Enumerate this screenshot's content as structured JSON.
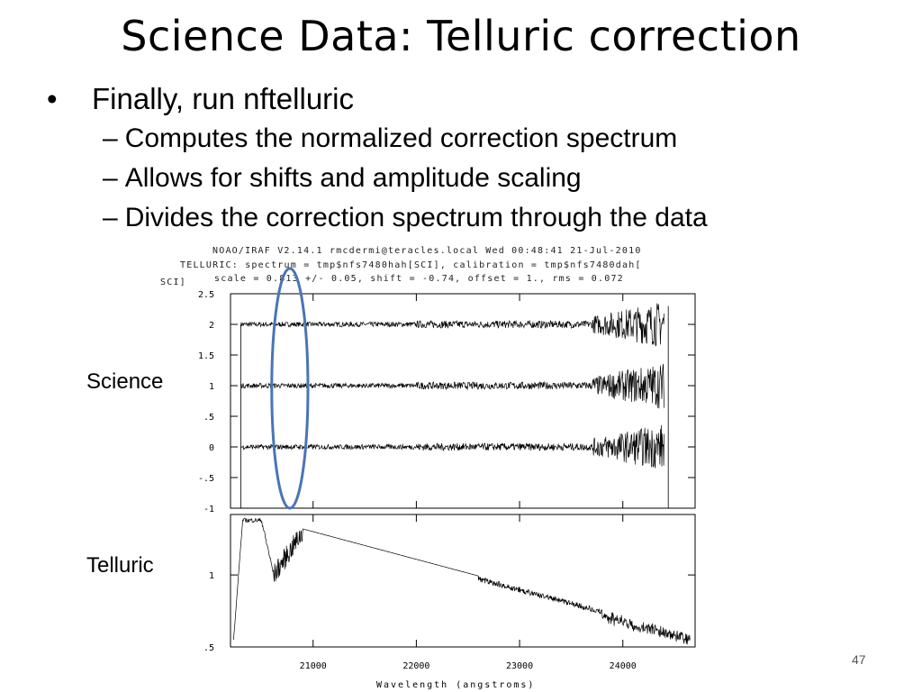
{
  "slide": {
    "title": "Science Data: Telluric correction",
    "bullet": "Finally, run nftelluric",
    "sub_bullets": [
      "Computes the normalized correction spectrum",
      "Allows for shifts and amplitude scaling",
      "Divides the correction spectrum through the data"
    ],
    "dash": "–",
    "dot": "•",
    "labels": {
      "science": "Science",
      "telluric": "Telluric"
    },
    "page_number": "47"
  },
  "chart_data": [
    {
      "type": "line",
      "header": [
        "NOAO/IRAF V2.14.1 rmcdermi@teracles.local Wed 00:48:41 21-Jul-2010",
        "TELLURIC: spectrum = tmp$nfs7480hah[SCI], calibration = tmp$nfs7480dah[",
        "scale =  0.813 +/-    0.05, shift = -0.74, offset =  1., rms = 0.072",
        "SCI]"
      ],
      "ylim": [
        -1,
        2.5
      ],
      "yticks": [
        "2.5",
        "2",
        "1.5",
        "1",
        ".5",
        "0",
        "-.5",
        "-1"
      ],
      "xlim": [
        20200,
        24700
      ],
      "series": [
        {
          "offset": 2.0
        },
        {
          "offset": 1.0
        },
        {
          "offset": 0.0
        }
      ],
      "highlight": {
        "x_range": [
          20600,
          20950
        ],
        "color": "#4a74b5"
      }
    },
    {
      "type": "line",
      "yticks": [
        "1",
        ".5"
      ],
      "ylim": [
        0.5,
        1.42
      ],
      "xlim": [
        20200,
        24700
      ],
      "xticks": [
        "21000",
        "22000",
        "23000",
        "24000"
      ],
      "xlabel": "Wavelength (angstroms)"
    }
  ]
}
